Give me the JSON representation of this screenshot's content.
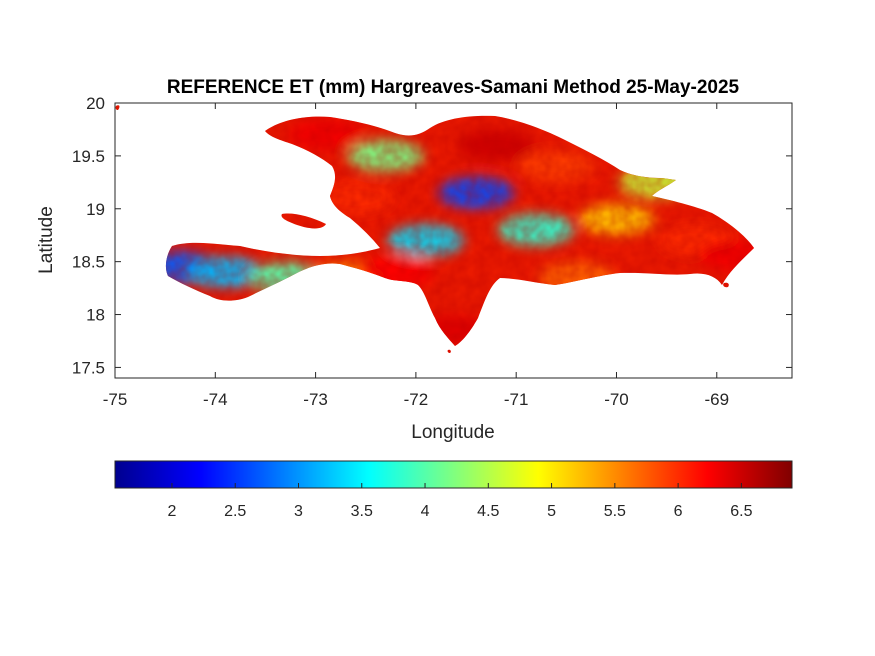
{
  "title": "REFERENCE ET (mm) Hargreaves-Samani Method  25-May-2025",
  "xlabel": "Longitude",
  "ylabel": "Latitude",
  "x_ticks": [
    "-75",
    "-74",
    "-73",
    "-72",
    "-71",
    "-70",
    "-69"
  ],
  "y_ticks": [
    "20",
    "19.5",
    "19",
    "18.5",
    "18",
    "17.5"
  ],
  "colorbar": {
    "colormap": "jet",
    "ticks": [
      "2",
      "2.5",
      "3",
      "3.5",
      "4",
      "4.5",
      "5",
      "5.5",
      "6",
      "6.5"
    ],
    "range": [
      1.55,
      6.9
    ]
  },
  "chart_data": {
    "type": "heatmap",
    "title": "REFERENCE ET (mm) Hargreaves-Samani Method  25-May-2025",
    "xlabel": "Longitude",
    "ylabel": "Latitude",
    "xlim": [
      -75,
      -68.25
    ],
    "ylim": [
      17.4,
      20
    ],
    "clim": [
      1.55,
      6.9
    ],
    "unit": "mm",
    "region_values": [
      {
        "lon": -74.35,
        "lat": 18.45,
        "value": 2.7
      },
      {
        "lon": -73.9,
        "lat": 18.4,
        "value": 3.2
      },
      {
        "lon": -73.3,
        "lat": 18.35,
        "value": 4.0
      },
      {
        "lon": -72.7,
        "lat": 18.35,
        "value": 5.5
      },
      {
        "lon": -72.2,
        "lat": 18.4,
        "value": 6.2
      },
      {
        "lon": -71.65,
        "lat": 17.85,
        "value": 6.4
      },
      {
        "lon": -72.9,
        "lat": 19.7,
        "value": 6.3
      },
      {
        "lon": -72.6,
        "lat": 19.1,
        "value": 6.0
      },
      {
        "lon": -72.3,
        "lat": 19.5,
        "value": 4.2
      },
      {
        "lon": -71.4,
        "lat": 19.15,
        "value": 2.6
      },
      {
        "lon": -71.9,
        "lat": 18.7,
        "value": 3.4
      },
      {
        "lon": -70.8,
        "lat": 18.8,
        "value": 3.8
      },
      {
        "lon": -71.2,
        "lat": 19.6,
        "value": 6.5
      },
      {
        "lon": -70.6,
        "lat": 19.4,
        "value": 5.9
      },
      {
        "lon": -70.0,
        "lat": 18.9,
        "value": 5.2
      },
      {
        "lon": -69.6,
        "lat": 19.25,
        "value": 4.6
      },
      {
        "lon": -69.2,
        "lat": 18.7,
        "value": 6.0
      },
      {
        "lon": -68.8,
        "lat": 18.55,
        "value": 6.3
      },
      {
        "lon": -70.4,
        "lat": 18.35,
        "value": 5.7
      }
    ]
  }
}
